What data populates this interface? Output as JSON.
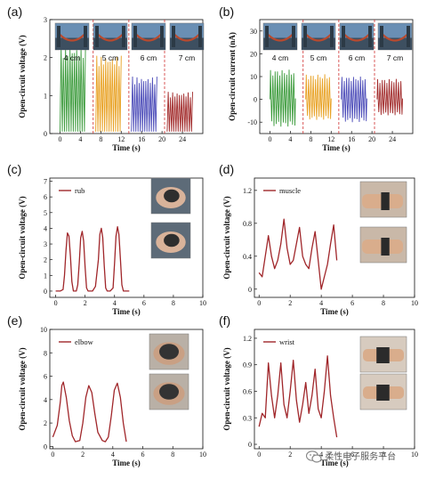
{
  "chart_data": [
    {
      "id": "a",
      "panel_label": "(a)",
      "type": "line",
      "xlabel": "Time (s)",
      "ylabel": "Open-circuit voltage (V)",
      "xlim": [
        -2,
        28
      ],
      "ylim": [
        0,
        3
      ],
      "x_ticks": [
        0,
        4,
        8,
        12,
        16,
        20,
        24
      ],
      "y_ticks": [
        0,
        1,
        2,
        3
      ],
      "separators_x": [
        6.5,
        13.5,
        20.5
      ],
      "segments": [
        {
          "label": "4 cm",
          "color": "#3a9a3a",
          "x_range": [
            0,
            5
          ],
          "peak": 2.3,
          "cycles": 11,
          "inset_photo": true
        },
        {
          "label": "5 cm",
          "color": "#e8a020",
          "x_range": [
            7,
            12
          ],
          "peak": 2.05,
          "cycles": 11,
          "inset_photo": true
        },
        {
          "label": "6 cm",
          "color": "#4a4ab8",
          "x_range": [
            14,
            19
          ],
          "peak": 1.5,
          "cycles": 11,
          "inset_photo": true
        },
        {
          "label": "7 cm",
          "color": "#a02828",
          "x_range": [
            21,
            26
          ],
          "peak": 1.1,
          "cycles": 11,
          "inset_photo": true
        }
      ]
    },
    {
      "id": "b",
      "panel_label": "(b)",
      "type": "line",
      "xlabel": "Time (s)",
      "ylabel": "Open-circuit current (nA)",
      "xlim": [
        -2,
        28
      ],
      "ylim": [
        -15,
        35
      ],
      "x_ticks": [
        0,
        4,
        8,
        12,
        16,
        20,
        24
      ],
      "y_ticks": [
        -10,
        0,
        10,
        20,
        30
      ],
      "separators_x": [
        6.5,
        13.5,
        20.5
      ],
      "segments": [
        {
          "label": "4 cm",
          "color": "#3a9a3a",
          "x_range": [
            0,
            5
          ],
          "max": 13,
          "min": -12,
          "cycles": 11,
          "inset_photo": true
        },
        {
          "label": "5 cm",
          "color": "#e8a020",
          "x_range": [
            7,
            12
          ],
          "max": 11,
          "min": -9,
          "cycles": 11,
          "inset_photo": true
        },
        {
          "label": "6 cm",
          "color": "#4a4ab8",
          "x_range": [
            14,
            19
          ],
          "max": 10,
          "min": -10,
          "cycles": 11,
          "inset_photo": true
        },
        {
          "label": "7 cm",
          "color": "#a02828",
          "x_range": [
            21,
            26
          ],
          "max": 9,
          "min": -7,
          "cycles": 11,
          "inset_photo": true
        }
      ]
    },
    {
      "id": "c",
      "panel_label": "(c)",
      "type": "line",
      "xlabel": "Time (s)",
      "ylabel": "Open-circuit voltage (V)",
      "xlim": [
        -0.4,
        10
      ],
      "ylim": [
        -0.4,
        7.2
      ],
      "x_ticks": [
        0,
        2,
        4,
        6,
        8,
        10
      ],
      "y_ticks": [
        0,
        1,
        2,
        3,
        4,
        5,
        6,
        7
      ],
      "legend": "rub",
      "series": [
        {
          "name": "rub",
          "color": "#a0262a",
          "x": [
            0,
            0.3,
            0.5,
            0.6,
            0.7,
            0.8,
            0.9,
            1.0,
            1.1,
            1.2,
            1.4,
            1.5,
            1.6,
            1.7,
            1.8,
            1.9,
            2.0,
            2.1,
            2.2,
            2.3,
            2.5,
            2.7,
            2.9,
            3.0,
            3.1,
            3.2,
            3.3,
            3.4,
            3.5,
            3.7,
            3.9,
            4.0,
            4.1,
            4.2,
            4.3,
            4.4,
            4.5,
            4.6,
            4.8,
            5.0
          ],
          "y": [
            0,
            0,
            0.1,
            1.0,
            2.6,
            3.7,
            3.5,
            2.2,
            0.6,
            0,
            0,
            0.4,
            1.8,
            3.4,
            3.8,
            3.2,
            1.5,
            0.2,
            0,
            0,
            0,
            0.3,
            2.0,
            3.6,
            4.0,
            3.4,
            1.6,
            0.2,
            0,
            0,
            0.2,
            1.8,
            3.5,
            4.1,
            3.6,
            2.0,
            0.4,
            0,
            0,
            0
          ]
        }
      ],
      "inset_photos": 2
    },
    {
      "id": "d",
      "panel_label": "(d)",
      "type": "line",
      "xlabel": "Time (s)",
      "ylabel": "Open-circuit voltage (V)",
      "xlim": [
        -0.3,
        10
      ],
      "ylim": [
        -0.1,
        1.35
      ],
      "x_ticks": [
        0,
        2,
        4,
        6,
        8,
        10
      ],
      "y_ticks": [
        0.0,
        0.4,
        0.8,
        1.2
      ],
      "legend": "muscle",
      "series": [
        {
          "name": "muscle",
          "color": "#a0262a",
          "x": [
            0,
            0.2,
            0.4,
            0.6,
            0.8,
            1.0,
            1.2,
            1.4,
            1.6,
            1.8,
            2.0,
            2.2,
            2.4,
            2.6,
            2.8,
            3.0,
            3.2,
            3.4,
            3.6,
            3.8,
            4.0,
            4.2,
            4.4,
            4.6,
            4.8,
            5.0
          ],
          "y": [
            0.2,
            0.15,
            0.4,
            0.65,
            0.4,
            0.25,
            0.35,
            0.55,
            0.85,
            0.5,
            0.3,
            0.35,
            0.55,
            0.75,
            0.4,
            0.3,
            0.25,
            0.5,
            0.7,
            0.35,
            0.0,
            0.15,
            0.3,
            0.55,
            0.78,
            0.35
          ]
        }
      ],
      "inset_photos": 2
    },
    {
      "id": "e",
      "panel_label": "(e)",
      "type": "line",
      "xlabel": "Time (s)",
      "ylabel": "Open-circuit voltage (V)",
      "xlim": [
        -0.2,
        10
      ],
      "ylim": [
        -0.2,
        10
      ],
      "x_ticks": [
        0,
        2,
        4,
        6,
        8,
        10
      ],
      "y_ticks": [
        0,
        2,
        4,
        6,
        8,
        10
      ],
      "legend": "elbow",
      "series": [
        {
          "name": "elbow",
          "color": "#a0262a",
          "x": [
            0,
            0.3,
            0.5,
            0.6,
            0.7,
            0.9,
            1.1,
            1.3,
            1.5,
            1.8,
            2.0,
            2.2,
            2.4,
            2.6,
            2.8,
            3.0,
            3.3,
            3.5,
            3.7,
            3.9,
            4.1,
            4.3,
            4.5,
            4.7,
            4.9
          ],
          "y": [
            0.8,
            1.8,
            3.8,
            5.2,
            5.5,
            4.2,
            2.2,
            0.9,
            0.4,
            0.5,
            2.0,
            4.2,
            5.2,
            4.6,
            2.8,
            1.2,
            0.5,
            0.4,
            0.8,
            2.6,
            4.8,
            5.4,
            4.2,
            2.0,
            0.4
          ]
        }
      ],
      "inset_photos": 2
    },
    {
      "id": "f",
      "panel_label": "(f)",
      "type": "line",
      "xlabel": "Time (s)",
      "ylabel": "Open-circuit voltage (V)",
      "xlim": [
        -0.3,
        10
      ],
      "ylim": [
        -0.05,
        1.3
      ],
      "x_ticks": [
        0,
        2,
        4,
        6,
        8,
        10
      ],
      "y_ticks": [
        0.0,
        0.3,
        0.6,
        0.9,
        1.2
      ],
      "legend": "wrist",
      "series": [
        {
          "name": "wrist",
          "color": "#a0262a",
          "x": [
            0,
            0.2,
            0.4,
            0.6,
            0.8,
            1.0,
            1.2,
            1.4,
            1.6,
            1.8,
            2.0,
            2.2,
            2.4,
            2.6,
            2.8,
            3.0,
            3.2,
            3.4,
            3.6,
            3.8,
            4.0,
            4.2,
            4.4,
            4.6,
            4.8,
            5.0
          ],
          "y": [
            0.2,
            0.35,
            0.3,
            0.92,
            0.55,
            0.3,
            0.55,
            0.92,
            0.45,
            0.3,
            0.6,
            0.95,
            0.5,
            0.25,
            0.45,
            0.7,
            0.35,
            0.55,
            0.85,
            0.4,
            0.3,
            0.6,
            1.0,
            0.55,
            0.3,
            0.08
          ]
        }
      ],
      "inset_photos": 2
    }
  ],
  "watermark": "柔性电子服务平台"
}
